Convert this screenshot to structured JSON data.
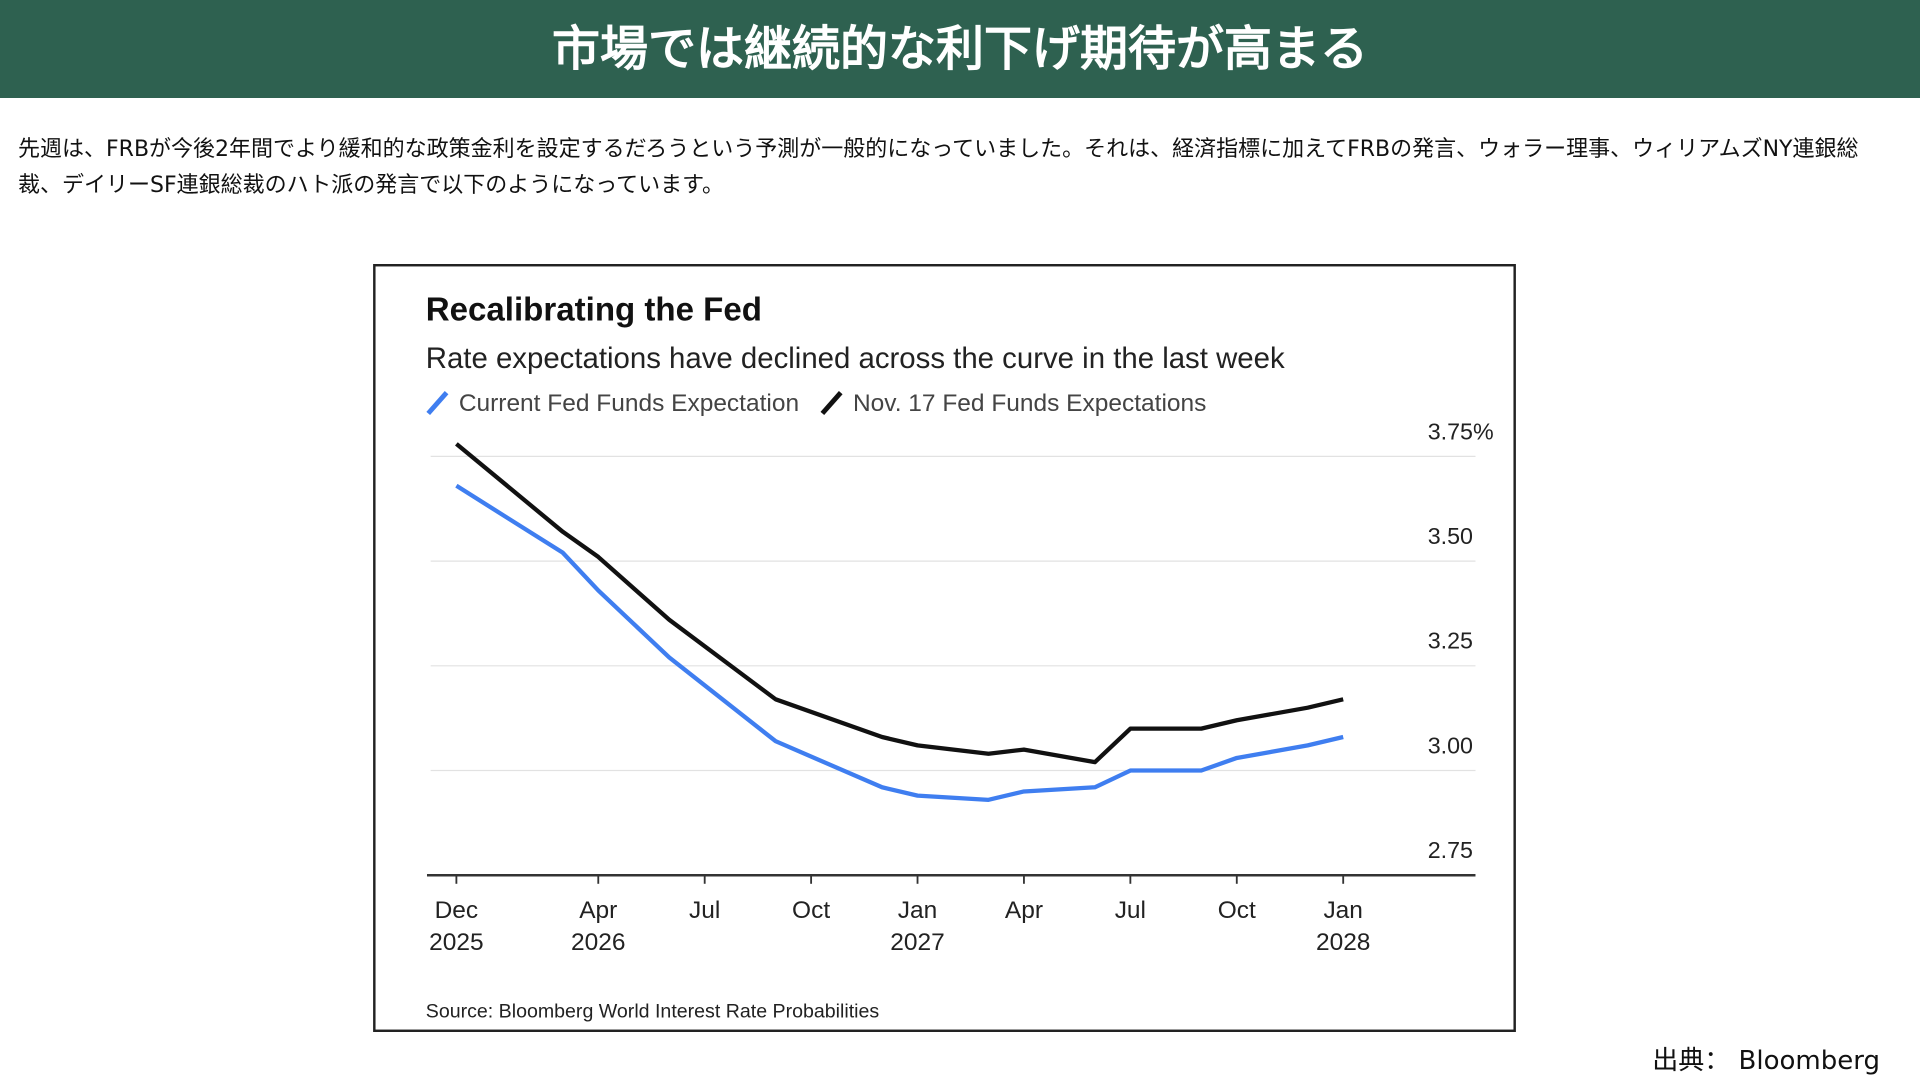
{
  "header": {
    "title": "市場では継続的な利下げ期待が高まる"
  },
  "intro": {
    "text": "先週は、FRBが今後2年間でより緩和的な政策金利を設定するだろうという予測が一般的になっていました。それは、経済指標に加えてFRBの発言、ウォラー理事、ウィリアムズNY連銀総裁、デイリーSF連銀総裁のハト派の発言で以下のようになっています。"
  },
  "chart_data": {
    "type": "line",
    "title": "Recalibrating the Fed",
    "subtitle": "Rate expectations have declined across the curve in the last week",
    "source": "Source: Bloomberg World Interest Rate Probabilities",
    "x": [
      "2025-12",
      "2026-03",
      "2026-04",
      "2026-06",
      "2026-09",
      "2026-12",
      "2027-01",
      "2027-03",
      "2027-04",
      "2027-06",
      "2027-07",
      "2027-09",
      "2027-10",
      "2027-12",
      "2028-01"
    ],
    "series": [
      {
        "name": "Current Fed Funds Expectation",
        "color": "#3f7ef0",
        "values": [
          3.68,
          3.52,
          3.43,
          3.27,
          3.07,
          2.96,
          2.94,
          2.93,
          2.95,
          2.96,
          3.0,
          3.0,
          3.03,
          3.06,
          3.08
        ]
      },
      {
        "name": "Nov. 17 Fed Funds Expectations",
        "color": "#111111",
        "values": [
          3.78,
          3.57,
          3.51,
          3.36,
          3.17,
          3.08,
          3.06,
          3.04,
          3.05,
          3.02,
          3.1,
          3.1,
          3.12,
          3.15,
          3.17
        ]
      }
    ],
    "xticks": [
      {
        "value": "2025-12",
        "label": [
          "Dec",
          "2025"
        ]
      },
      {
        "value": "2026-04",
        "label": [
          "Apr",
          "2026"
        ]
      },
      {
        "value": "2026-07",
        "label": [
          "Jul"
        ]
      },
      {
        "value": "2026-10",
        "label": [
          "Oct"
        ]
      },
      {
        "value": "2027-01",
        "label": [
          "Jan",
          "2027"
        ]
      },
      {
        "value": "2027-04",
        "label": [
          "Apr"
        ]
      },
      {
        "value": "2027-07",
        "label": [
          "Jul"
        ]
      },
      {
        "value": "2027-10",
        "label": [
          "Oct"
        ]
      },
      {
        "value": "2028-01",
        "label": [
          "Jan",
          "2028"
        ]
      }
    ],
    "ylim": [
      2.75,
      3.8
    ],
    "yticks": [
      2.75,
      {
        "value": 3,
        "label": "3.00"
      },
      3.25,
      {
        "value": 3.5,
        "label": "3.50"
      },
      {
        "value": 3.75,
        "label": "3.75%"
      }
    ],
    "grid": true
  },
  "footer": {
    "source": "出典： Bloomberg"
  }
}
